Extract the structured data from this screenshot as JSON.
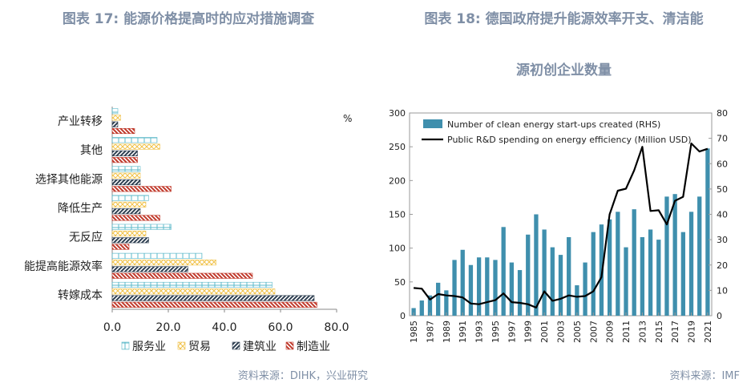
{
  "left": {
    "title": "图表 17: 能源价格提高时的应对措施调查",
    "source": "资料来源：DIHK，兴业研究",
    "unit": "%"
  },
  "right": {
    "title_line1": "图表 18: 德国政府提升能源效率开支、清洁能",
    "title_line2": "源初创企业数量",
    "source": "资料来源：IMF"
  },
  "chart_data": [
    {
      "type": "bar",
      "orientation": "horizontal",
      "categories": [
        "产业转移",
        "其他",
        "选择其他能源",
        "降低生产",
        "无反应",
        "能提高能源效率",
        "转嫁成本"
      ],
      "series": [
        {
          "name": "服务业",
          "values": [
            2,
            16,
            10,
            13,
            21,
            32,
            57
          ]
        },
        {
          "name": "贸易",
          "values": [
            3,
            17,
            10,
            12,
            12,
            37,
            58
          ]
        },
        {
          "name": "建筑业",
          "values": [
            2,
            9,
            10,
            10,
            13,
            27,
            72
          ]
        },
        {
          "name": "制造业",
          "values": [
            8,
            9,
            21,
            17,
            6,
            50,
            73
          ]
        }
      ],
      "xlim": [
        0,
        80
      ],
      "xticks": [
        "0.0",
        "20.0",
        "40.0",
        "60.0",
        "80.0"
      ],
      "legend": "bottom",
      "colors": {
        "服务业": "#5bb8c9",
        "贸易": "#f1c24a",
        "建筑业": "#2d3e50",
        "制造业": "#c0392b"
      }
    },
    {
      "type": "bar+line",
      "x": [
        1985,
        1986,
        1987,
        1988,
        1989,
        1990,
        1991,
        1992,
        1993,
        1994,
        1995,
        1996,
        1997,
        1998,
        1999,
        2000,
        2001,
        2002,
        2003,
        2004,
        2005,
        2006,
        2007,
        2008,
        2009,
        2010,
        2011,
        2012,
        2013,
        2014,
        2015,
        2016,
        2017,
        2018,
        2019,
        2020,
        2021
      ],
      "xticks": [
        "1985",
        "1987",
        "1989",
        "1991",
        "1993",
        "1995",
        "1997",
        "1999",
        "2001",
        "2003",
        "2005",
        "2007",
        "2009",
        "2011",
        "2013",
        "2015",
        "2017",
        "2019",
        "2021"
      ],
      "series": [
        {
          "name": "Number of clean energy start-ups created (RHS)",
          "kind": "bar",
          "axis": "right",
          "values": [
            3,
            6,
            8,
            13,
            10,
            22,
            26,
            20,
            23,
            23,
            22,
            35,
            21,
            18,
            32,
            40,
            34,
            27,
            24,
            31,
            12,
            21,
            33,
            36,
            38,
            41,
            27,
            42,
            31,
            34,
            30,
            47,
            48,
            33,
            41,
            47,
            66
          ]
        },
        {
          "name": "Public R&D spending on energy efficiency (Million USD)",
          "kind": "line",
          "axis": "left",
          "values": [
            41,
            40,
            24,
            32,
            30,
            29,
            27,
            18,
            17,
            20,
            23,
            33,
            20,
            19,
            17,
            12,
            36,
            22,
            25,
            30,
            28,
            29,
            36,
            57,
            150,
            185,
            188,
            215,
            250,
            155,
            156,
            135,
            170,
            176,
            255,
            243,
            247
          ]
        }
      ],
      "ylim_left": [
        0,
        300
      ],
      "yticks_left": [
        "0",
        "50",
        "100",
        "150",
        "200",
        "250",
        "300"
      ],
      "ylim_right": [
        0,
        80
      ],
      "yticks_right": [
        "0",
        "10",
        "20",
        "30",
        "40",
        "50",
        "60",
        "70",
        "80"
      ],
      "legend": "top-left",
      "colors": {
        "bar": "#3f8fad",
        "line": "#000000"
      }
    }
  ]
}
